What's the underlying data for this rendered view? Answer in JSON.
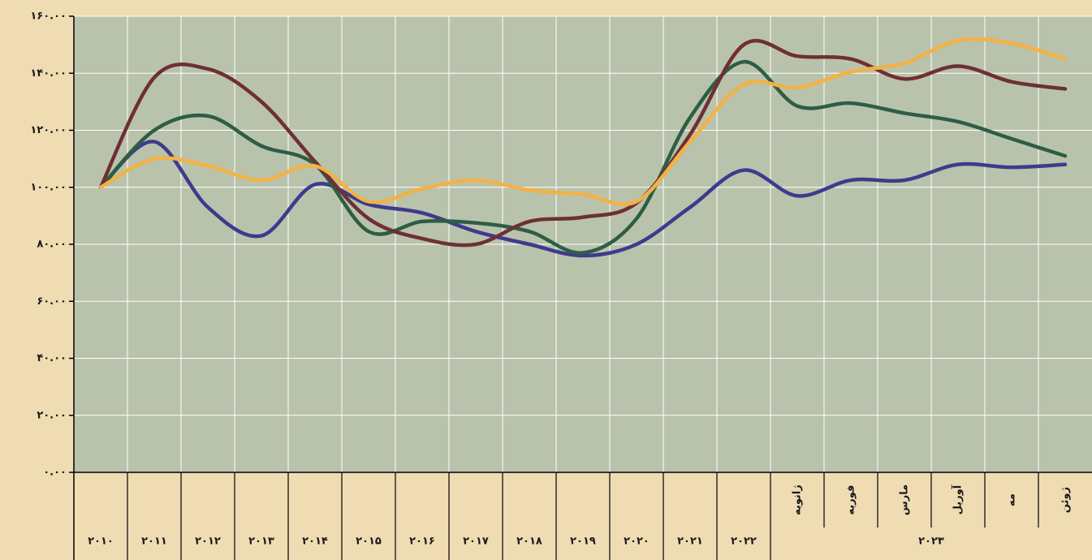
{
  "chart_data": {
    "type": "line",
    "categories": [
      null,
      null,
      null,
      null,
      null,
      null,
      null,
      null,
      null,
      null,
      null,
      null,
      null,
      "ژانویه",
      "فوریه",
      "مارس",
      "آوریل",
      "مه",
      "ژوئن"
    ],
    "outer_categories": [
      "۲۰۱۰",
      "۲۰۱۱",
      "۲۰۱۲",
      "۲۰۱۳",
      "۲۰۱۴",
      "۲۰۱۵",
      "۲۰۱۶",
      "۲۰۱۷",
      "۲۰۱۸",
      "۲۰۱۹",
      "۲۰۲۰",
      "۲۰۲۱",
      "۲۰۲۲",
      "۲۰۲۳"
    ],
    "ylim": [
      0,
      160
    ],
    "yticks": [
      {
        "value": 0,
        "label": "۰.۰۰"
      },
      {
        "value": 20,
        "label": "۲۰.۰۰"
      },
      {
        "value": 40,
        "label": "۴۰.۰۰"
      },
      {
        "value": 60,
        "label": "۶۰.۰۰"
      },
      {
        "value": 80,
        "label": "۸۰.۰۰"
      },
      {
        "value": 100,
        "label": "۱۰۰.۰۰"
      },
      {
        "value": 120,
        "label": "۱۲۰.۰۰"
      },
      {
        "value": 140,
        "label": "۱۴۰.۰۰"
      },
      {
        "value": 160,
        "label": "۱۶۰.۰۰"
      }
    ],
    "grid": true,
    "series": [
      {
        "color": "#3f3a8e",
        "values": [
          100,
          116,
          93,
          83,
          101,
          94,
          91,
          84.5,
          80,
          76,
          80,
          93,
          106,
          97,
          102.5,
          102.5,
          108,
          107,
          108
        ]
      },
      {
        "color": "#2d5e45",
        "values": [
          100,
          120,
          125,
          114.5,
          108,
          84.5,
          88,
          87.5,
          84.5,
          77,
          89,
          124.5,
          144,
          128.5,
          129.5,
          126,
          123,
          117,
          111
        ]
      },
      {
        "color": "#6e2f35",
        "values": [
          100,
          138.5,
          141.5,
          130,
          109,
          89,
          82,
          80,
          88,
          89.5,
          94.5,
          118.5,
          150,
          146,
          145,
          138,
          142.5,
          137,
          134.5
        ]
      },
      {
        "color": "#f2b244",
        "values": [
          100,
          110,
          107.5,
          102.5,
          107.5,
          95,
          99.5,
          102.5,
          99,
          97.5,
          95,
          116,
          136,
          135,
          140.5,
          143.5,
          151.5,
          150.5,
          145
        ]
      }
    ]
  }
}
